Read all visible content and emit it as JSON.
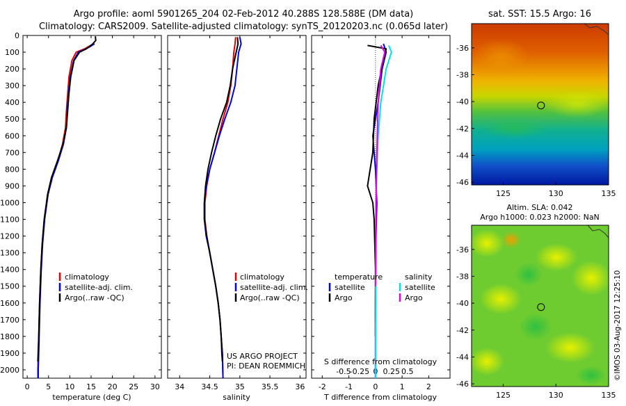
{
  "header": {
    "title_line1": "Argo profile: aoml 5901265_204 02-Feb-2012 40.288S 128.588E (DM data)",
    "title_line2": "Climatology: CARS2009. Satellite-adjusted climatology: synTS_20120203.nc (0.065d later)"
  },
  "colors": {
    "climatology": "#e00000",
    "satellite": "#0000e0",
    "argo": "#000000",
    "salinity_satellite": "#00e0e0",
    "salinity_argo": "#e000e0"
  },
  "depth_axis": {
    "min": 0,
    "max": 2050,
    "ticks": [
      "0",
      "100",
      "200",
      "300",
      "400",
      "500",
      "600",
      "700",
      "800",
      "900",
      "1000",
      "1100",
      "1200",
      "1300",
      "1400",
      "1500",
      "1600",
      "1700",
      "1800",
      "1900",
      "2000"
    ]
  },
  "chart_data": [
    {
      "type": "line",
      "name": "temperature-profile",
      "xlabel": "temperature (deg C)",
      "xlim": [
        -1,
        31.5
      ],
      "x_ticks": [
        "0",
        "5",
        "10",
        "15",
        "20",
        "25",
        "30"
      ],
      "ylim": [
        2050,
        0
      ],
      "legend": [
        "climatology",
        "satellite-adj. clim.",
        "Argo(..raw -QC)"
      ],
      "legend_placement": "center",
      "series": [
        {
          "name": "climatology",
          "points": [
            [
              15.6,
              50
            ],
            [
              14.5,
              65
            ],
            [
              13.5,
              80
            ],
            [
              11.5,
              100
            ],
            [
              10.5,
              150
            ],
            [
              9.8,
              250
            ],
            [
              9.5,
              350
            ],
            [
              9.2,
              450
            ],
            [
              9.0,
              550
            ],
            [
              8.3,
              650
            ],
            [
              7.2,
              750
            ],
            [
              5.8,
              850
            ],
            [
              4.8,
              950
            ],
            [
              4.0,
              1100
            ],
            [
              3.5,
              1250
            ],
            [
              3.2,
              1400
            ],
            [
              2.9,
              1600
            ],
            [
              2.7,
              1800
            ],
            [
              2.5,
              2000
            ],
            [
              2.5,
              2050
            ]
          ]
        },
        {
          "name": "satellite-adj. clim.",
          "points": [
            [
              15.8,
              50
            ],
            [
              14.9,
              65
            ],
            [
              13.8,
              80
            ],
            [
              12.0,
              100
            ],
            [
              10.9,
              150
            ],
            [
              10.1,
              250
            ],
            [
              9.7,
              350
            ],
            [
              9.4,
              450
            ],
            [
              9.2,
              550
            ],
            [
              8.5,
              650
            ],
            [
              7.3,
              750
            ],
            [
              5.9,
              850
            ],
            [
              4.9,
              950
            ],
            [
              4.1,
              1100
            ],
            [
              3.6,
              1250
            ],
            [
              3.3,
              1400
            ],
            [
              3.0,
              1600
            ],
            [
              2.8,
              1800
            ],
            [
              2.6,
              2000
            ],
            [
              2.6,
              2050
            ]
          ]
        },
        {
          "name": "Argo(..raw -QC)",
          "points": [
            [
              16.0,
              5
            ],
            [
              16.1,
              30
            ],
            [
              15.4,
              50
            ],
            [
              14.7,
              65
            ],
            [
              13.9,
              80
            ],
            [
              12.3,
              100
            ],
            [
              11.0,
              150
            ],
            [
              10.2,
              250
            ],
            [
              9.8,
              350
            ],
            [
              9.5,
              450
            ],
            [
              9.2,
              550
            ],
            [
              8.4,
              650
            ],
            [
              7.1,
              750
            ],
            [
              5.7,
              850
            ],
            [
              4.8,
              950
            ],
            [
              4.0,
              1100
            ],
            [
              3.5,
              1250
            ],
            [
              3.2,
              1400
            ],
            [
              2.9,
              1600
            ],
            [
              2.7,
              1800
            ],
            [
              2.5,
              1950
            ]
          ]
        }
      ]
    },
    {
      "type": "line",
      "name": "salinity-profile",
      "xlabel": "salinity",
      "xlim": [
        33.8,
        36.1
      ],
      "x_ticks": [
        "34",
        "34.5",
        "35",
        "35.5",
        "36"
      ],
      "ylim": [
        2050,
        0
      ],
      "legend": [
        "climatology",
        "satellite-adj. clim.",
        "Argo(..raw -QC)"
      ],
      "legend_placement": "center",
      "series": [
        {
          "name": "climatology",
          "points": [
            [
              34.93,
              10
            ],
            [
              34.92,
              50
            ],
            [
              34.9,
              100
            ],
            [
              34.88,
              200
            ],
            [
              34.85,
              300
            ],
            [
              34.8,
              400
            ],
            [
              34.72,
              500
            ],
            [
              34.65,
              600
            ],
            [
              34.58,
              700
            ],
            [
              34.5,
              800
            ],
            [
              34.45,
              900
            ],
            [
              34.42,
              1000
            ],
            [
              34.42,
              1100
            ],
            [
              34.45,
              1200
            ],
            [
              34.5,
              1300
            ],
            [
              34.55,
              1400
            ],
            [
              34.6,
              1500
            ],
            [
              34.64,
              1600
            ],
            [
              34.67,
              1700
            ],
            [
              34.69,
              1800
            ],
            [
              34.71,
              1900
            ],
            [
              34.72,
              2050
            ]
          ]
        },
        {
          "name": "satellite-adj. clim.",
          "points": [
            [
              35.0,
              10
            ],
            [
              35.02,
              50
            ],
            [
              34.98,
              100
            ],
            [
              34.95,
              200
            ],
            [
              34.92,
              300
            ],
            [
              34.85,
              400
            ],
            [
              34.75,
              500
            ],
            [
              34.66,
              600
            ],
            [
              34.58,
              700
            ],
            [
              34.5,
              800
            ],
            [
              34.44,
              900
            ],
            [
              34.41,
              1000
            ],
            [
              34.41,
              1100
            ],
            [
              34.44,
              1200
            ],
            [
              34.5,
              1300
            ],
            [
              34.55,
              1400
            ],
            [
              34.6,
              1500
            ],
            [
              34.64,
              1600
            ],
            [
              34.67,
              1700
            ],
            [
              34.69,
              1800
            ],
            [
              34.71,
              1900
            ],
            [
              34.72,
              2050
            ]
          ]
        },
        {
          "name": "Argo(..raw -QC)",
          "points": [
            [
              34.96,
              10
            ],
            [
              34.97,
              50
            ],
            [
              34.94,
              100
            ],
            [
              34.88,
              200
            ],
            [
              34.84,
              300
            ],
            [
              34.78,
              400
            ],
            [
              34.68,
              500
            ],
            [
              34.6,
              600
            ],
            [
              34.53,
              700
            ],
            [
              34.47,
              800
            ],
            [
              34.43,
              900
            ],
            [
              34.41,
              1000
            ],
            [
              34.41,
              1100
            ],
            [
              34.45,
              1200
            ],
            [
              34.5,
              1300
            ],
            [
              34.55,
              1400
            ],
            [
              34.6,
              1500
            ],
            [
              34.64,
              1600
            ],
            [
              34.67,
              1700
            ],
            [
              34.69,
              1800
            ],
            [
              34.7,
              1900
            ],
            [
              34.71,
              1950
            ]
          ]
        }
      ]
    },
    {
      "type": "line",
      "name": "difference-profile",
      "xlabel": "T difference from climatology",
      "xlabel_top": "S difference from climatology",
      "xlim": [
        -2.4,
        2.8
      ],
      "x_ticks": [
        "-2",
        "-1",
        "0",
        "1",
        "2"
      ],
      "x_ticks_top": [
        "-0.5",
        "-0.25",
        "0",
        "0.25",
        "0.5"
      ],
      "ylim": [
        2050,
        0
      ],
      "legend_groups": [
        {
          "heading": "temperature",
          "entries": [
            "satellite",
            "Argo"
          ]
        },
        {
          "heading": "salinity",
          "entries": [
            "satellite",
            "Argo"
          ]
        }
      ],
      "legend_placement": "center",
      "series": [
        {
          "name": "temperature satellite",
          "points": [
            [
              0.3,
              50
            ],
            [
              0.4,
              100
            ],
            [
              0.25,
              200
            ],
            [
              0.1,
              400
            ],
            [
              -0.1,
              600
            ],
            [
              0.0,
              800
            ],
            [
              0.05,
              1000
            ],
            [
              0.02,
              1200
            ],
            [
              0.0,
              1600
            ],
            [
              0.0,
              2050
            ]
          ]
        },
        {
          "name": "temperature Argo",
          "points": [
            [
              -0.3,
              60
            ],
            [
              0.4,
              80
            ],
            [
              0.3,
              150
            ],
            [
              0.1,
              300
            ],
            [
              -0.05,
              500
            ],
            [
              -0.1,
              700
            ],
            [
              -0.3,
              900
            ],
            [
              -0.1,
              1000
            ],
            [
              -0.05,
              1100
            ],
            [
              0.0,
              1400
            ],
            [
              0.0,
              1800
            ]
          ]
        },
        {
          "name": "salinity satellite",
          "points": [
            [
              0.5,
              60
            ],
            [
              0.6,
              100
            ],
            [
              0.4,
              200
            ],
            [
              0.2,
              400
            ],
            [
              0.1,
              600
            ],
            [
              0.05,
              800
            ],
            [
              0.02,
              1000
            ],
            [
              0.01,
              1500
            ],
            [
              0.0,
              2050
            ]
          ]
        },
        {
          "name": "salinity Argo",
          "points": [
            [
              0.2,
              60
            ],
            [
              0.35,
              100
            ],
            [
              0.2,
              200
            ],
            [
              0.1,
              400
            ],
            [
              0.05,
              700
            ],
            [
              0.02,
              1000
            ],
            [
              0.0,
              1500
            ]
          ]
        }
      ]
    },
    {
      "type": "heatmap",
      "name": "sst-map",
      "title": "sat. SST: 15.5 Argo: 16",
      "xlim": [
        122,
        135
      ],
      "ylim": [
        -46.2,
        -34.2
      ],
      "x_ticks": [
        "125",
        "130",
        "135"
      ],
      "y_ticks": [
        "-36",
        "-38",
        "-40",
        "-42",
        "-44",
        "-46"
      ],
      "marker": [
        128.588,
        -40.288
      ]
    },
    {
      "type": "heatmap",
      "name": "sla-map",
      "title_line1": "Altim. SLA: 0.042",
      "title_line2": "Argo h1000: 0.023 h2000: NaN",
      "xlim": [
        122,
        135
      ],
      "ylim": [
        -46.2,
        -34.2
      ],
      "x_ticks": [
        "125",
        "130",
        "135"
      ],
      "y_ticks": [
        "-36",
        "-38",
        "-40",
        "-42",
        "-44",
        "-46"
      ],
      "marker": [
        128.588,
        -40.288
      ]
    }
  ],
  "notes": {
    "project_line1": "US ARGO PROJECT",
    "project_line2": "PI: DEAN ROEMMICH",
    "copyright": "©IMOS 03-Aug-2017 12:25:10"
  }
}
